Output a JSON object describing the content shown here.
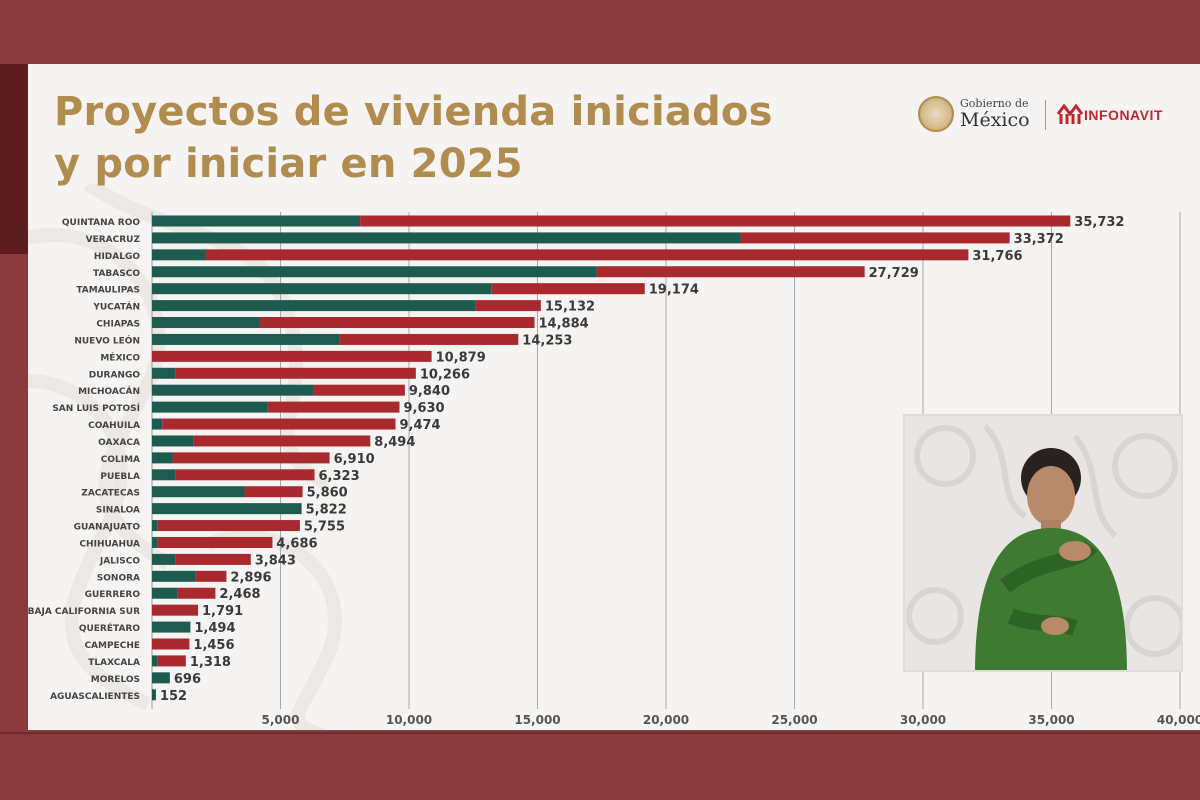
{
  "title_line1": "Proyectos de vivienda iniciados",
  "title_line2": "y por iniciar en 2025",
  "logos": {
    "gobierno_small": "Gobierno de",
    "gobierno_big": "México",
    "infonavit": "INFONAVIT"
  },
  "colors": {
    "started": "#1d5a4f",
    "to_start": "#a8292e",
    "title": "#b18c4f",
    "frame": "#8a3b3d"
  },
  "chart_data": {
    "type": "bar",
    "orientation": "horizontal",
    "stacked": true,
    "categories": [
      "QUINTANA ROO",
      "VERACRUZ",
      "HIDALGO",
      "TABASCO",
      "TAMAULIPAS",
      "YUCATÁN",
      "CHIAPAS",
      "NUEVO LEÓN",
      "MÉXICO",
      "DURANGO",
      "MICHOACÁN",
      "SAN LUIS POTOSÍ",
      "COAHUILA",
      "OAXACA",
      "COLIMA",
      "PUEBLA",
      "ZACATECAS",
      "SINALOA",
      "GUANAJUATO",
      "CHIHUAHUA",
      "JALISCO",
      "SONORA",
      "GUERRERO",
      "BAJA CALIFORNIA SUR",
      "QUERÉTARO",
      "CAMPECHE",
      "TLAXCALA",
      "MORELOS",
      "AGUASCALIENTES"
    ],
    "series": [
      {
        "values": [
          8100,
          22900,
          2100,
          17300,
          13200,
          12600,
          4200,
          7300,
          0,
          900,
          6300,
          4500,
          400,
          1600,
          800,
          900,
          3600,
          5822,
          200,
          200,
          900,
          1700,
          1000,
          0,
          1494,
          0,
          200,
          696,
          152
        ]
      },
      {
        "values": [
          27632,
          10472,
          29666,
          10429,
          5974,
          2532,
          10684,
          6953,
          10879,
          9366,
          3540,
          5130,
          9074,
          6894,
          6110,
          5423,
          2260,
          0,
          5555,
          4486,
          2943,
          1196,
          1468,
          1791,
          0,
          1456,
          1118,
          0,
          0
        ]
      }
    ],
    "totals": [
      "35,732",
      "33,372",
      "31,766",
      "27,729",
      "19,174",
      "15,132",
      "14,884",
      "14,253",
      "10,879",
      "10,266",
      "9,840",
      "9,630",
      "9,474",
      "8,494",
      "6,910",
      "6,323",
      "5,860",
      "5,822",
      "5,755",
      "4,686",
      "3,843",
      "2,896",
      "2,468",
      "1,791",
      "1,494",
      "1,456",
      "1,318",
      "696",
      "152"
    ],
    "total_values": [
      35732,
      33372,
      31766,
      27729,
      19174,
      15132,
      14884,
      14253,
      10879,
      10266,
      9840,
      9630,
      9474,
      8494,
      6910,
      6323,
      5860,
      5822,
      5755,
      4686,
      3843,
      2896,
      2468,
      1791,
      1494,
      1456,
      1318,
      696,
      152
    ],
    "xlim": [
      0,
      40000
    ],
    "xticks": [
      5000,
      10000,
      15000,
      20000,
      25000,
      30000,
      35000,
      40000
    ],
    "xtick_labels": [
      "5,000",
      "10,000",
      "15,000",
      "20,000",
      "25,000",
      "30,000",
      "35,000",
      "40,000"
    ],
    "grid": true
  }
}
